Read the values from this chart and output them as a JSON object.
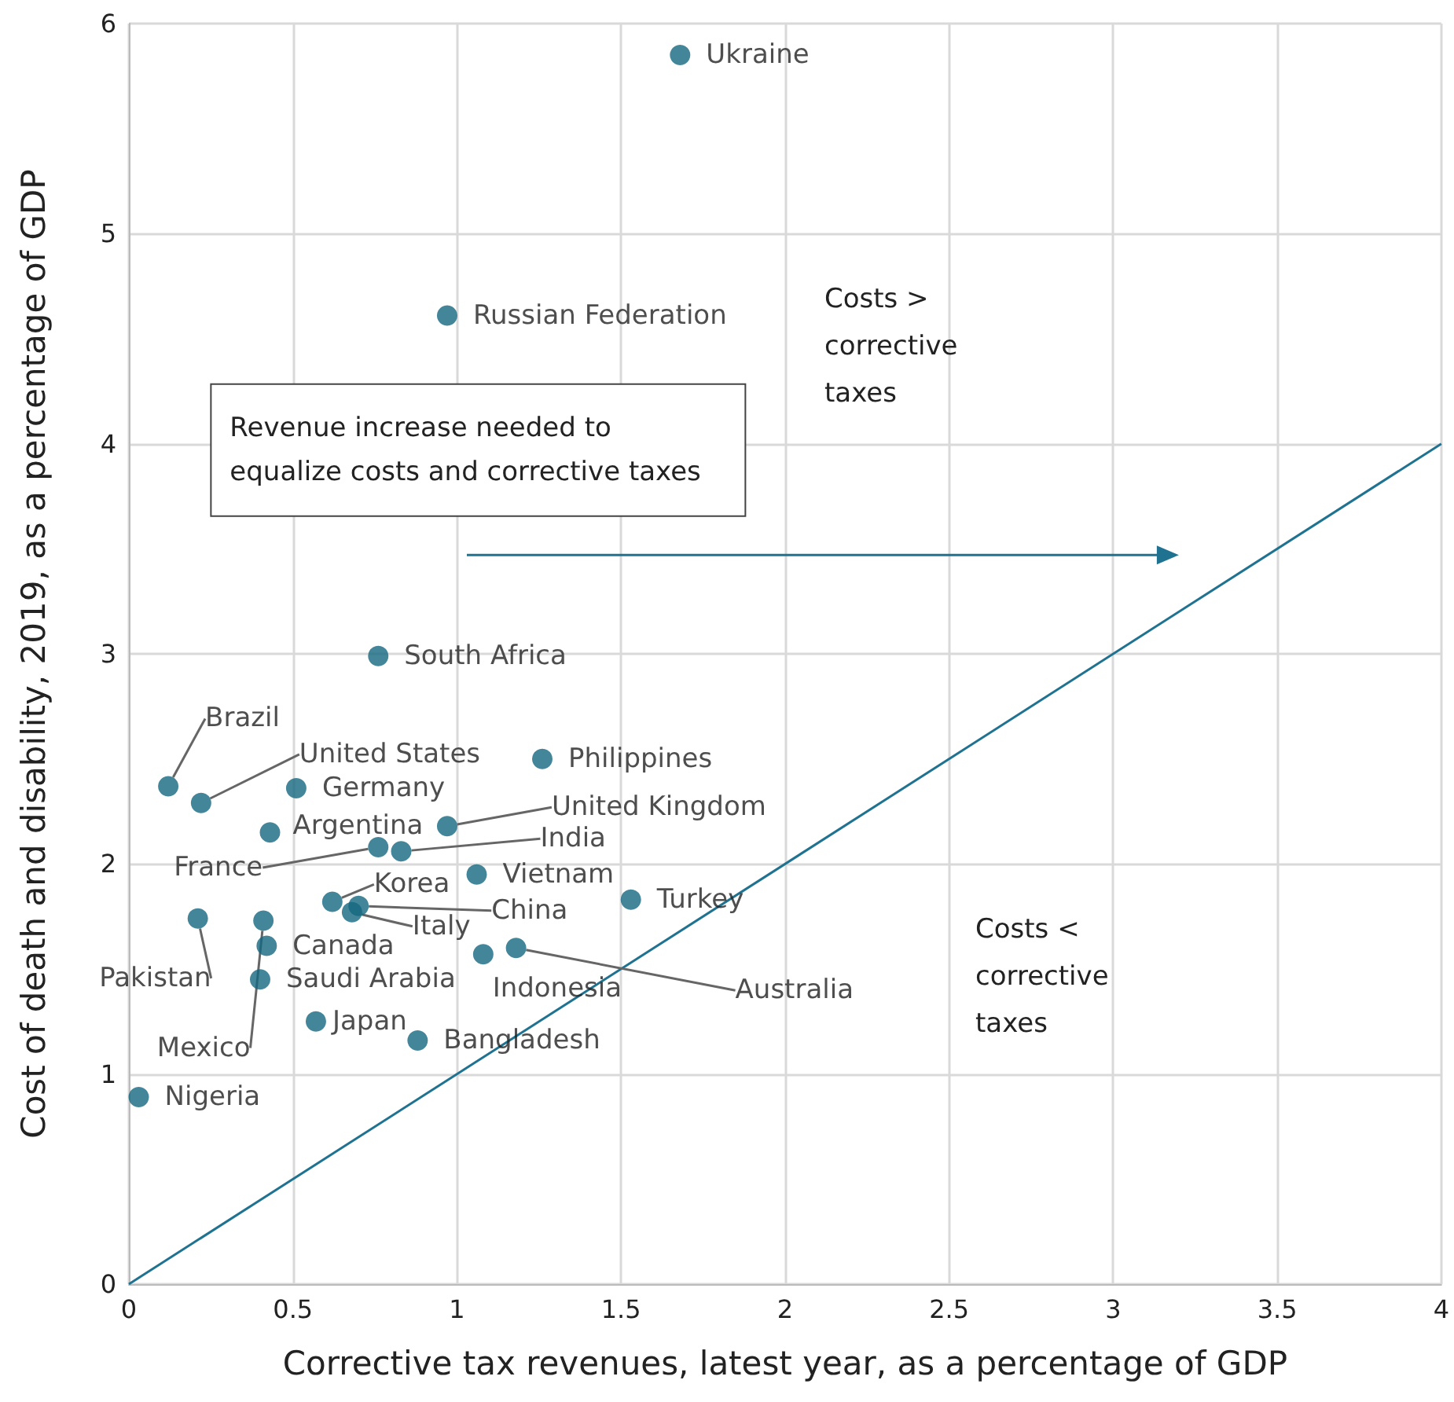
{
  "chart_data": {
    "type": "scatter",
    "xlabel": "Corrective tax revenues, latest year, as a percentage of GDP",
    "ylabel": "Cost of death and disability, 2019, as a percentage of GDP",
    "xlim": [
      0,
      4
    ],
    "xticks": [
      0,
      0.5,
      1,
      1.5,
      2,
      2.5,
      3,
      3.5,
      4
    ],
    "ylim": [
      0,
      6
    ],
    "yticks": [
      0,
      1,
      2,
      3,
      4,
      5,
      6
    ],
    "grid": true,
    "legend": false,
    "marker": "circle",
    "annotations": [
      "Revenue increase needed to equalize costs and corrective taxes",
      "Costs > corrective taxes",
      "Costs < corrective taxes"
    ],
    "series": [
      {
        "name": "Ukraine",
        "color": "#14667f",
        "x": [
          1.68
        ],
        "values": [
          5.85
        ]
      },
      {
        "name": "Russian Federation",
        "color": "#14667f",
        "x": [
          0.97
        ],
        "values": [
          4.61
        ]
      },
      {
        "name": "South Africa",
        "color": "#14667f",
        "x": [
          0.76
        ],
        "values": [
          2.99
        ]
      },
      {
        "name": "Brazil",
        "color": "#14667f",
        "x": [
          0.12
        ],
        "values": [
          2.37
        ]
      },
      {
        "name": "United States",
        "color": "#14667f",
        "x": [
          0.22
        ],
        "values": [
          2.29
        ]
      },
      {
        "name": "Germany",
        "color": "#14667f",
        "x": [
          0.51
        ],
        "values": [
          2.36
        ]
      },
      {
        "name": "Argentina",
        "color": "#14667f",
        "x": [
          0.43
        ],
        "values": [
          2.15
        ]
      },
      {
        "name": "United Kingdom",
        "color": "#14667f",
        "x": [
          0.97
        ],
        "values": [
          2.18
        ]
      },
      {
        "name": "France",
        "color": "#14667f",
        "x": [
          0.76
        ],
        "values": [
          2.08
        ]
      },
      {
        "name": "India",
        "color": "#14667f",
        "x": [
          0.83
        ],
        "values": [
          2.06
        ]
      },
      {
        "name": "Philippines",
        "color": "#14667f",
        "x": [
          1.26
        ],
        "values": [
          2.5
        ]
      },
      {
        "name": "Vietnam",
        "color": "#14667f",
        "x": [
          1.06
        ],
        "values": [
          1.95
        ]
      },
      {
        "name": "Turkey",
        "color": "#14667f",
        "x": [
          1.53
        ],
        "values": [
          1.83
        ]
      },
      {
        "name": "Korea",
        "color": "#14667f",
        "x": [
          0.62
        ],
        "values": [
          1.82
        ]
      },
      {
        "name": "China",
        "color": "#14667f",
        "x": [
          0.7
        ],
        "values": [
          1.8
        ]
      },
      {
        "name": "Italy",
        "color": "#14667f",
        "x": [
          0.68
        ],
        "values": [
          1.77
        ]
      },
      {
        "name": "Pakistan",
        "color": "#14667f",
        "x": [
          0.21
        ],
        "values": [
          1.74
        ]
      },
      {
        "name": "Mexico",
        "color": "#14667f",
        "x": [
          0.41
        ],
        "values": [
          1.73
        ]
      },
      {
        "name": "Canada",
        "color": "#14667f",
        "x": [
          0.42
        ],
        "values": [
          1.61
        ]
      },
      {
        "name": "Saudi Arabia",
        "color": "#14667f",
        "x": [
          0.4
        ],
        "values": [
          1.45
        ]
      },
      {
        "name": "Indonesia",
        "color": "#14667f",
        "x": [
          1.08
        ],
        "values": [
          1.57
        ]
      },
      {
        "name": "Australia",
        "color": "#14667f",
        "x": [
          1.18
        ],
        "values": [
          1.6
        ]
      },
      {
        "name": "Japan",
        "color": "#14667f",
        "x": [
          0.57
        ],
        "values": [
          1.25
        ]
      },
      {
        "name": "Bangladesh",
        "color": "#14667f",
        "x": [
          0.88
        ],
        "values": [
          1.16
        ]
      },
      {
        "name": "Nigeria",
        "color": "#14667f",
        "x": [
          0.03
        ],
        "values": [
          0.89
        ]
      },
      {
        "type": "line",
        "color": "#1f7391",
        "x": [
          0,
          4
        ],
        "values": [
          0,
          4
        ],
        "marker": "none",
        "line_style": "solid"
      }
    ]
  }
}
